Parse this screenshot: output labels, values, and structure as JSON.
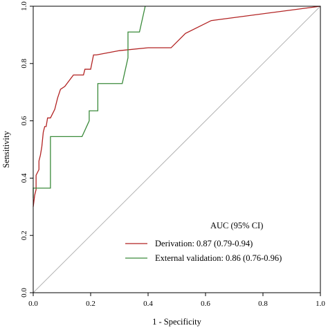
{
  "chart_data": {
    "type": "line",
    "xlabel": "1 - Specificity",
    "ylabel": "Sensitivity",
    "xlim": [
      0,
      1
    ],
    "ylim": [
      0,
      1
    ],
    "x_ticks": [
      "0.0",
      "0.2",
      "0.4",
      "0.6",
      "0.8",
      "1.0"
    ],
    "y_ticks": [
      "0.0",
      "0.2",
      "0.4",
      "0.6",
      "0.8",
      "1.0"
    ],
    "x_tick_values": [
      0,
      0.2,
      0.4,
      0.6,
      0.8,
      1.0
    ],
    "y_tick_values": [
      0,
      0.2,
      0.4,
      0.6,
      0.8,
      1.0
    ],
    "grid": false,
    "legend": {
      "title": "AUC (95% CI)",
      "placement": "bottom-right"
    },
    "reference_line": {
      "x": [
        0,
        1
      ],
      "y": [
        0,
        1
      ],
      "color": "#b3b3b3"
    },
    "series": [
      {
        "name": "Derivation: 0.87 (0.79-0.94)",
        "color": "#b22222",
        "x": [
          0,
          0.005,
          0.01,
          0.01,
          0.015,
          0.02,
          0.02,
          0.025,
          0.03,
          0.035,
          0.04,
          0.045,
          0.05,
          0.05,
          0.06,
          0.075,
          0.085,
          0.095,
          0.11,
          0.125,
          0.14,
          0.16,
          0.175,
          0.18,
          0.2,
          0.21,
          0.22,
          0.3,
          0.4,
          0.48,
          0.53,
          0.62,
          1.0
        ],
        "y": [
          0.3,
          0.34,
          0.36,
          0.41,
          0.42,
          0.43,
          0.46,
          0.48,
          0.51,
          0.56,
          0.58,
          0.58,
          0.61,
          0.61,
          0.61,
          0.64,
          0.68,
          0.71,
          0.72,
          0.74,
          0.76,
          0.76,
          0.76,
          0.78,
          0.78,
          0.83,
          0.83,
          0.845,
          0.855,
          0.855,
          0.905,
          0.95,
          1.0
        ]
      },
      {
        "name": "External validation: 0.86 (0.76-0.96)",
        "color": "#3a8a3a",
        "x": [
          0,
          0,
          0.06,
          0.06,
          0.17,
          0.195,
          0.195,
          0.225,
          0.225,
          0.255,
          0.255,
          0.31,
          0.33,
          0.33,
          0.345,
          0.345,
          0.37,
          0.39
        ],
        "y": [
          0.33,
          0.365,
          0.365,
          0.545,
          0.545,
          0.6,
          0.635,
          0.635,
          0.73,
          0.73,
          0.73,
          0.73,
          0.82,
          0.91,
          0.91,
          0.91,
          0.91,
          1.0
        ]
      }
    ]
  }
}
